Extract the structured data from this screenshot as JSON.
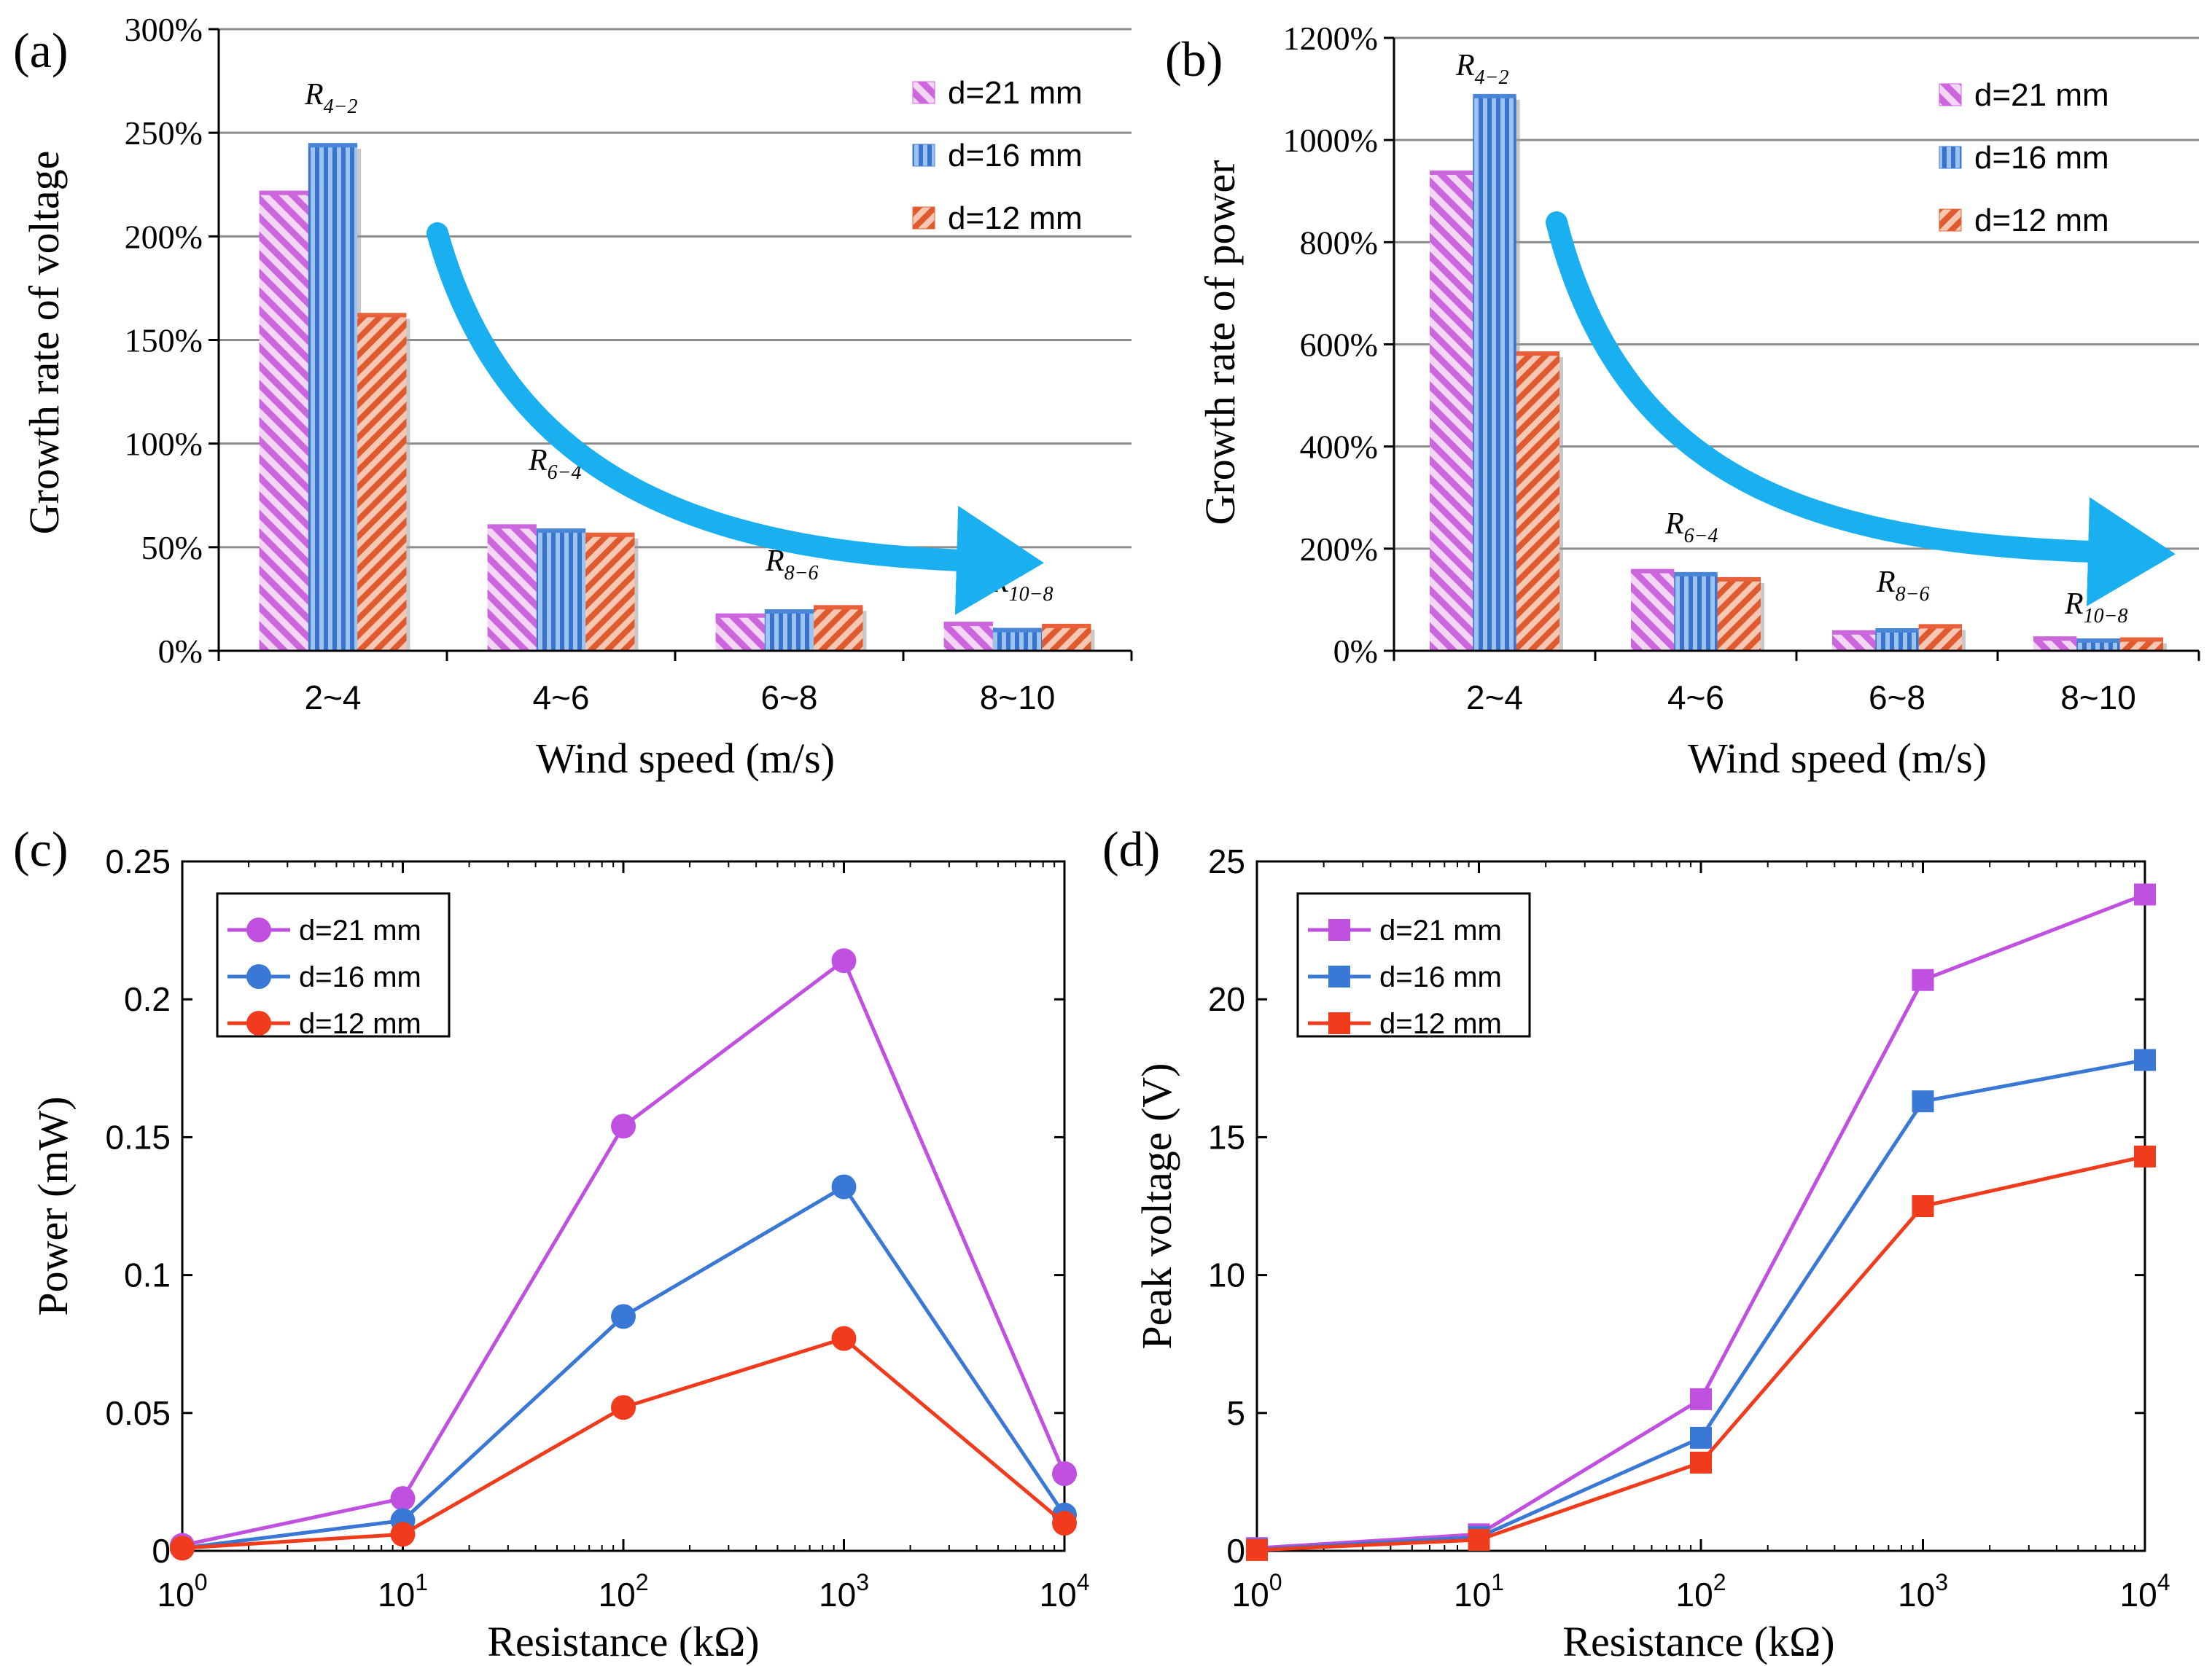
{
  "colors": {
    "d21": "#c050e0",
    "d16": "#3a78d6",
    "d12": "#f03c1c",
    "bar_d21": "#cc66dd",
    "bar_d16": "#4a86d8",
    "bar_d12": "#e8603a",
    "arrow": "#1ab0f0",
    "grid": "#8c8c8c"
  },
  "chart_data": [
    {
      "id": "a",
      "panel_label": "(a)",
      "type": "bar",
      "xlabel": "Wind speed (m/s)",
      "ylabel": "Growth rate of  voltage",
      "categories": [
        "2~4",
        "4~6",
        "6~8",
        "8~10"
      ],
      "ylim": [
        0,
        300
      ],
      "yticks": [
        0,
        50,
        100,
        150,
        200,
        250,
        300
      ],
      "ytick_labels": [
        "0%",
        "50%",
        "100%",
        "150%",
        "200%",
        "250%",
        "300%"
      ],
      "grid": true,
      "legend_position": "top-right",
      "series": [
        {
          "name": "d=21 mm",
          "key": "d21",
          "values": [
            221,
            60,
            17,
            13
          ]
        },
        {
          "name": "d=16 mm",
          "key": "d16",
          "values": [
            244,
            58,
            19,
            10
          ]
        },
        {
          "name": "d=12 mm",
          "key": "d12",
          "values": [
            162,
            56,
            21,
            12
          ]
        }
      ],
      "annotations": [
        {
          "main": "R",
          "sub": "4−2"
        },
        {
          "main": "R",
          "sub": "6−4"
        },
        {
          "main": "R",
          "sub": "8−6"
        },
        {
          "main": "R",
          "sub": "10−8"
        }
      ]
    },
    {
      "id": "b",
      "panel_label": "(b)",
      "type": "bar",
      "xlabel": "Wind speed (m/s)",
      "ylabel": "Growth rate of  power",
      "categories": [
        "2~4",
        "4~6",
        "6~8",
        "8~10"
      ],
      "ylim": [
        0,
        1200
      ],
      "yticks": [
        0,
        200,
        400,
        600,
        800,
        1000,
        1200
      ],
      "ytick_labels": [
        "0%",
        "200%",
        "400%",
        "600%",
        "800%",
        "1000%",
        "1200%"
      ],
      "grid": true,
      "legend_position": "top-right",
      "series": [
        {
          "name": "d=21 mm",
          "key": "d21",
          "values": [
            936,
            156,
            36,
            24
          ]
        },
        {
          "name": "d=16 mm",
          "key": "d16",
          "values": [
            1086,
            150,
            40,
            20
          ]
        },
        {
          "name": "d=12 mm",
          "key": "d12",
          "values": [
            582,
            140,
            48,
            22
          ]
        }
      ],
      "annotations": [
        {
          "main": "R",
          "sub": "4−2"
        },
        {
          "main": "R",
          "sub": "6−4"
        },
        {
          "main": "R",
          "sub": "8−6"
        },
        {
          "main": "R",
          "sub": "10−8"
        }
      ]
    },
    {
      "id": "c",
      "panel_label": "(c)",
      "type": "line",
      "marker": "circle",
      "xscale": "log",
      "xlabel": "Resistance (kΩ)",
      "ylabel": "Power (mW)",
      "x": [
        1,
        10,
        100,
        1000,
        10000
      ],
      "xtick_labels": [
        {
          "base": "10",
          "exp": "0"
        },
        {
          "base": "10",
          "exp": "1"
        },
        {
          "base": "10",
          "exp": "2"
        },
        {
          "base": "10",
          "exp": "3"
        },
        {
          "base": "10",
          "exp": "4"
        }
      ],
      "ylim": [
        0,
        0.25
      ],
      "yticks": [
        0,
        0.05,
        0.1,
        0.15,
        0.2,
        0.25
      ],
      "ytick_labels": [
        "0",
        "0.05",
        "0.1",
        "0.15",
        "0.2",
        "0.25"
      ],
      "grid": false,
      "legend_position": "top-left",
      "series": [
        {
          "name": "d=21 mm",
          "key": "d21",
          "values": [
            0.002,
            0.019,
            0.154,
            0.214,
            0.028
          ]
        },
        {
          "name": "d=16 mm",
          "key": "d16",
          "values": [
            0.001,
            0.011,
            0.085,
            0.132,
            0.013
          ]
        },
        {
          "name": "d=12 mm",
          "key": "d12",
          "values": [
            0.001,
            0.006,
            0.052,
            0.077,
            0.01
          ]
        }
      ]
    },
    {
      "id": "d",
      "panel_label": "(d)",
      "type": "line",
      "marker": "square",
      "xscale": "log",
      "xlabel": "Resistance (kΩ)",
      "ylabel": "Peak voltage (V)",
      "x": [
        1,
        10,
        100,
        1000,
        10000
      ],
      "xtick_labels": [
        {
          "base": "10",
          "exp": "0"
        },
        {
          "base": "10",
          "exp": "1"
        },
        {
          "base": "10",
          "exp": "2"
        },
        {
          "base": "10",
          "exp": "3"
        },
        {
          "base": "10",
          "exp": "4"
        }
      ],
      "ylim": [
        0,
        25
      ],
      "yticks": [
        0,
        5,
        10,
        15,
        20,
        25
      ],
      "ytick_labels": [
        "0",
        "5",
        "10",
        "15",
        "20",
        "25"
      ],
      "grid": false,
      "legend_position": "top-left",
      "series": [
        {
          "name": "d=21 mm",
          "key": "d21",
          "values": [
            0.1,
            0.6,
            5.5,
            20.7,
            23.8
          ]
        },
        {
          "name": "d=16 mm",
          "key": "d16",
          "values": [
            0.05,
            0.5,
            4.1,
            16.3,
            17.8
          ]
        },
        {
          "name": "d=12 mm",
          "key": "d12",
          "values": [
            0.03,
            0.4,
            3.2,
            12.5,
            14.3
          ]
        }
      ]
    }
  ]
}
